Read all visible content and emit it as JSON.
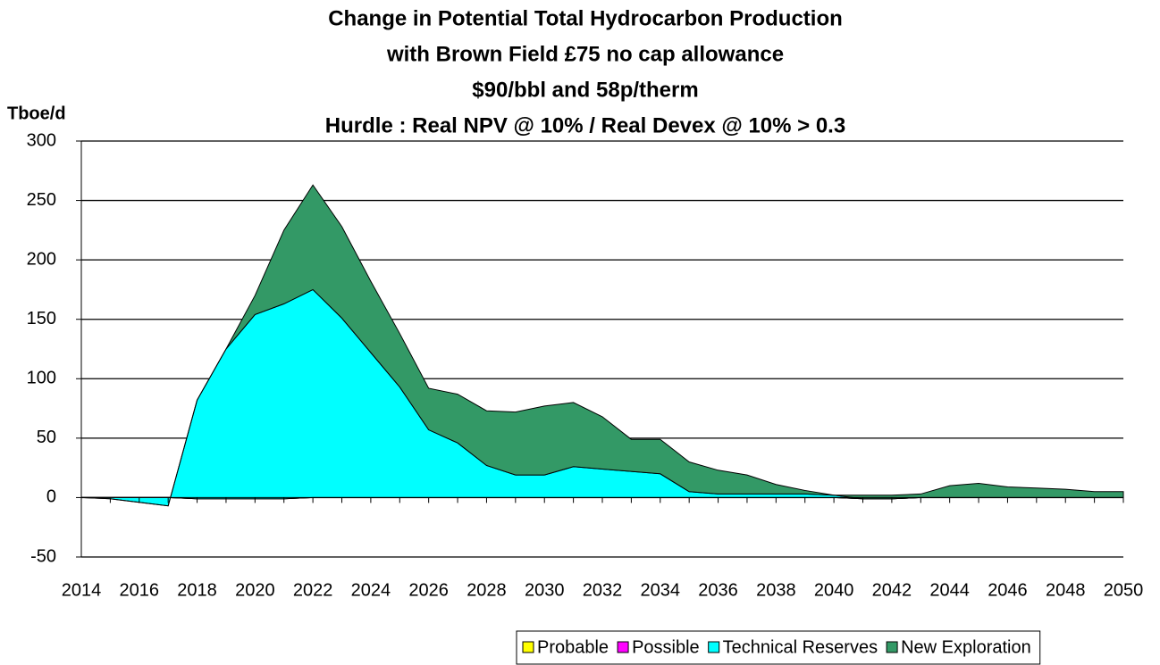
{
  "chart_data": {
    "type": "stacked_area",
    "title": [
      "Change in Potential Total Hydrocarbon Production",
      "with Brown Field £75 no cap allowance",
      "$90/bbl and 58p/therm",
      "Hurdle : Real NPV @ 10% / Real Devex @ 10% > 0.3"
    ],
    "y_label": "Tboe/d",
    "categories": [
      2014,
      null,
      2016,
      null,
      2018,
      null,
      2020,
      null,
      2022,
      null,
      2024,
      null,
      2026,
      null,
      2028,
      null,
      2030,
      null,
      2032,
      null,
      2034,
      null,
      2036,
      null,
      2038,
      null,
      2040,
      null,
      2042,
      null,
      2044,
      null,
      2046,
      null,
      2048,
      null,
      2050
    ],
    "series": [
      {
        "name": "Probable",
        "color": "#ffff00",
        "values": [
          0,
          0,
          0,
          0,
          -1,
          -1,
          -1,
          -1,
          0,
          0,
          0,
          0,
          0,
          0,
          0,
          0,
          0,
          0,
          0,
          0,
          0,
          0,
          0,
          0,
          0,
          0,
          0,
          -1,
          -1,
          0,
          0,
          0,
          0,
          0,
          0,
          0,
          0
        ]
      },
      {
        "name": "Possible",
        "color": "#ff00ff",
        "values": [
          0,
          0,
          0,
          0,
          0,
          0,
          0,
          0,
          0,
          0,
          0,
          0,
          0,
          0,
          0,
          0,
          0,
          0,
          0,
          0,
          0,
          0,
          0,
          0,
          0,
          0,
          0,
          0,
          0,
          0,
          0,
          0,
          0,
          0,
          0,
          0,
          0
        ]
      },
      {
        "name": "Technical Reserves",
        "color": "#00ffff",
        "values": [
          0,
          -1,
          -4,
          -7,
          83,
          126,
          155,
          164,
          175,
          151,
          122,
          93,
          57,
          46,
          27,
          19,
          19,
          26,
          24,
          22,
          20,
          5,
          3,
          3,
          3,
          3,
          2,
          0,
          0,
          0,
          0,
          0,
          0,
          0,
          0,
          0,
          0
        ]
      },
      {
        "name": "New Exploration",
        "color": "#339966",
        "values": [
          0,
          0,
          0,
          0,
          0,
          0,
          16,
          62,
          88,
          77,
          60,
          45,
          35,
          41,
          46,
          53,
          58,
          54,
          44,
          27,
          29,
          25,
          20,
          16,
          8,
          3,
          0,
          3,
          3,
          3,
          10,
          12,
          9,
          8,
          7,
          5,
          5
        ]
      }
    ],
    "ylim": [
      -50,
      300
    ],
    "yticks": [
      -50,
      0,
      50,
      100,
      150,
      200,
      250,
      300
    ],
    "grid": true
  }
}
